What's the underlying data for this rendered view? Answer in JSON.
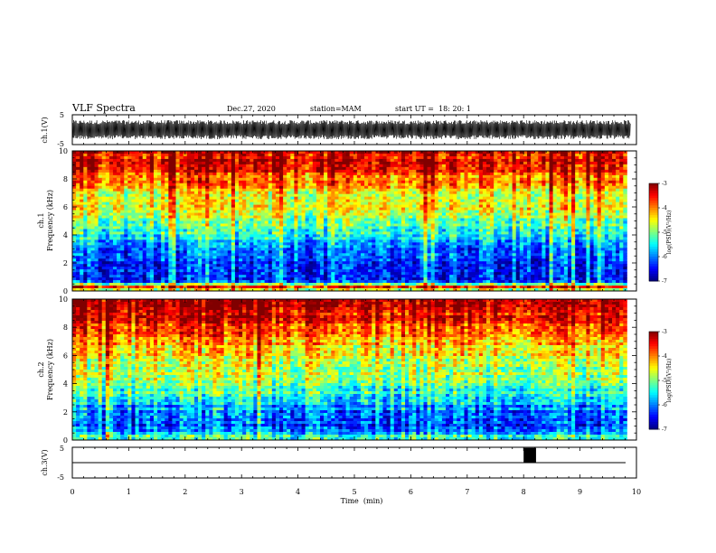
{
  "header": {
    "title": "VLF Spectra",
    "date": "Dec.27, 2020",
    "station": "station=MAM",
    "start": "start UT =  18: 20: 1"
  },
  "chart_data": [
    {
      "type": "line",
      "name": "ch1-waveform",
      "ylabel": "ch.1(V)",
      "ylim": [
        -5,
        5
      ],
      "yticks": [
        "5",
        "-5"
      ],
      "xlim": [
        0,
        10
      ],
      "description": "dense broadband noise filling roughly -3 to +3 V"
    },
    {
      "type": "heatmap",
      "name": "ch1-spectrogram",
      "ylabel_top": "ch.1",
      "ylabel": "Frequency (kHz)",
      "ylim": [
        0,
        10
      ],
      "yticks": [
        "0",
        "2",
        "4",
        "6",
        "8",
        "10"
      ],
      "xlim": [
        0,
        9.83
      ],
      "colorbar": {
        "label": "log(PSD)(V²/Hz)",
        "range": [
          -7,
          -3
        ],
        "ticks": [
          "-3",
          "-4",
          "-5",
          "-6",
          "-7"
        ]
      },
      "profile": [
        {
          "f": 0.0,
          "v": -5.0
        },
        {
          "f": 0.35,
          "v": -3.4
        },
        {
          "f": 0.6,
          "v": -6.4
        },
        {
          "f": 1.0,
          "v": -6.5
        },
        {
          "f": 2.0,
          "v": -6.3
        },
        {
          "f": 3.0,
          "v": -6.1
        },
        {
          "f": 4.0,
          "v": -5.5
        },
        {
          "f": 5.0,
          "v": -5.0
        },
        {
          "f": 6.0,
          "v": -4.7
        },
        {
          "f": 7.0,
          "v": -4.5
        },
        {
          "f": 8.0,
          "v": -4.0
        },
        {
          "f": 9.0,
          "v": -3.6
        },
        {
          "f": 10.0,
          "v": -3.4
        }
      ]
    },
    {
      "type": "heatmap",
      "name": "ch2-spectrogram",
      "ylabel_top": "ch.2",
      "ylabel": "Frequency (kHz)",
      "ylim": [
        0,
        10
      ],
      "yticks": [
        "0",
        "2",
        "4",
        "6",
        "8",
        "10"
      ],
      "xlim": [
        0,
        9.83
      ],
      "colorbar": {
        "label": "log(PSD)(V²/Hz)",
        "range": [
          -7,
          -3
        ],
        "ticks": [
          "-3",
          "-4",
          "-5",
          "-6",
          "-7"
        ]
      },
      "profile": [
        {
          "f": 0.0,
          "v": -5.2
        },
        {
          "f": 0.4,
          "v": -5.5
        },
        {
          "f": 1.0,
          "v": -6.4
        },
        {
          "f": 2.0,
          "v": -6.0
        },
        {
          "f": 3.0,
          "v": -5.6
        },
        {
          "f": 4.0,
          "v": -5.0
        },
        {
          "f": 5.0,
          "v": -4.8
        },
        {
          "f": 6.0,
          "v": -4.6
        },
        {
          "f": 7.0,
          "v": -4.2
        },
        {
          "f": 8.0,
          "v": -3.8
        },
        {
          "f": 9.0,
          "v": -3.4
        },
        {
          "f": 10.0,
          "v": -3.2
        }
      ]
    },
    {
      "type": "line",
      "name": "ch3-signal",
      "ylabel": "ch.3(V)",
      "ylim": [
        -5,
        5
      ],
      "yticks": [
        "5",
        "-5"
      ],
      "xlim": [
        0,
        10
      ],
      "xticks": [
        "0",
        "1",
        "2",
        "3",
        "4",
        "5",
        "6",
        "7",
        "8",
        "9",
        "10"
      ],
      "xlabel": "Time  (min)",
      "baseline": 0,
      "pulse": {
        "x_start": 8.0,
        "x_end": 8.22,
        "y": 4.8
      }
    }
  ]
}
